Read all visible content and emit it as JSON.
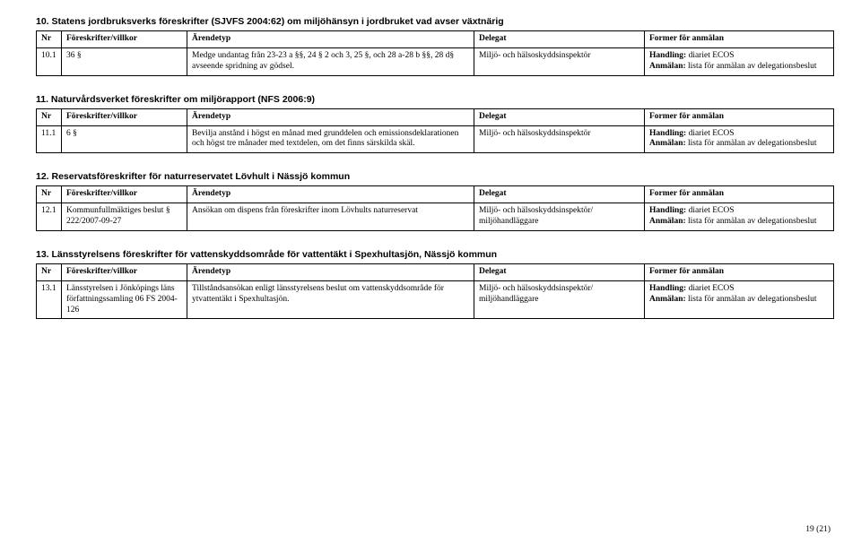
{
  "sections": [
    {
      "title": "10. Statens jordbruksverks föreskrifter (SJVFS 2004:62) om miljöhänsyn i jordbruket vad avser växtnärig",
      "header": {
        "nr": "Nr",
        "fv": "Föreskrifter/villkor",
        "at": "Ärendetyp",
        "del": "Delegat",
        "form": "Former för anmälan"
      },
      "rows": [
        {
          "nr": "10.1",
          "fv": "36 §",
          "at": "Medge undantag från 23-23 a §§, 24 § 2 och 3, 25 §, och 28 a-28 b §§, 28 d§ avseende spridning av gödsel.",
          "del": "Miljö- och hälsoskyddsinspektör",
          "form_h": "Handling: ",
          "form_ht": "diariet ECOS",
          "form_a": "Anmälan: ",
          "form_at": "lista för anmälan av delegationsbeslut"
        }
      ]
    },
    {
      "title": "11. Naturvårdsverket föreskrifter om miljörapport (NFS 2006:9)",
      "header": {
        "nr": "Nr",
        "fv": "Föreskrifter/villkor",
        "at": "Ärendetyp",
        "del": "Delegat",
        "form": "Former för anmälan"
      },
      "rows": [
        {
          "nr": "11.1",
          "fv": "6 §",
          "at": "Bevilja anstånd i högst en månad med grunddelen och emissionsdeklarationen och högst tre månader med textdelen, om det finns särskilda skäl.",
          "del": "Miljö- och hälsoskyddsinspektör",
          "form_h": "Handling: ",
          "form_ht": "diariet ECOS",
          "form_a": "Anmälan: ",
          "form_at": "lista för anmälan av delegationsbeslut"
        }
      ]
    },
    {
      "title": "12. Reservatsföreskrifter för naturreservatet Lövhult i Nässjö kommun",
      "header": {
        "nr": "Nr",
        "fv": "Föreskrifter/villkor",
        "at": "Ärendetyp",
        "del": "Delegat",
        "form": "Former för anmälan"
      },
      "rows": [
        {
          "nr": "12.1",
          "fv": "Kommunfullmäktiges beslut § 222/2007-09-27",
          "at": "Ansökan om dispens från föreskrifter inom Lövhults naturreservat",
          "del": "Miljö- och hälsoskyddsinspektör/ miljöhandläggare",
          "form_h": "Handling: ",
          "form_ht": "diariet ECOS",
          "form_a": "Anmälan: ",
          "form_at": "lista för anmälan av delegationsbeslut"
        }
      ]
    },
    {
      "title": "13. Länsstyrelsens föreskrifter för vattenskyddsområde för vattentäkt i Spexhultasjön, Nässjö kommun",
      "header": {
        "nr": "Nr",
        "fv": "Föreskrifter/villkor",
        "at": "Ärendetyp",
        "del": "Delegat",
        "form": "Former för anmälan"
      },
      "rows": [
        {
          "nr": "13.1",
          "fv": "Länsstyrelsen i Jönköpings läns författningssamling 06 FS 2004-126",
          "at": "Tillståndsansökan enligt länsstyrelsens beslut om vattenskyddsområde för ytvattentäkt i Spexhultasjön.",
          "del": "Miljö- och hälsoskyddsinspektör/ miljöhandläggare",
          "form_h": "Handling: ",
          "form_ht": "diariet ECOS",
          "form_a": "Anmälan: ",
          "form_at": "lista för anmälan av delegationsbeslut"
        }
      ]
    }
  ],
  "footer": "19 (21)"
}
